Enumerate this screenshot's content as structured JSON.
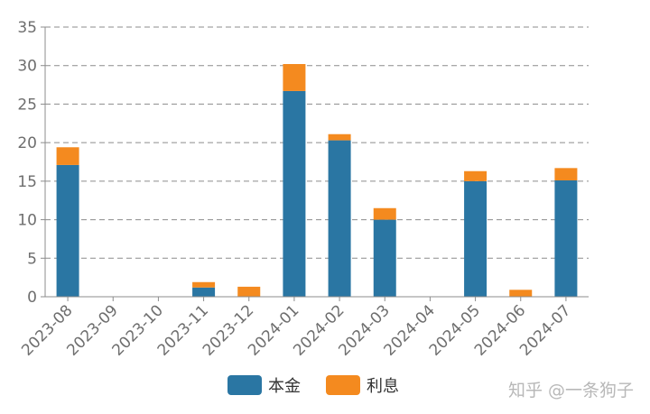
{
  "chart_data": {
    "type": "bar",
    "stacked": true,
    "categories": [
      "2023-08",
      "2023-09",
      "2023-10",
      "2023-11",
      "2023-12",
      "2024-01",
      "2024-02",
      "2024-03",
      "2024-04",
      "2024-05",
      "2024-06",
      "2024-07"
    ],
    "series": [
      {
        "name": "本金",
        "color": "#2a76a3",
        "values": [
          17.1,
          0,
          0,
          1.2,
          0,
          26.7,
          20.3,
          10.0,
          0,
          15.0,
          0,
          15.1
        ]
      },
      {
        "name": "利息",
        "color": "#f48a1f",
        "values": [
          2.3,
          0,
          0,
          0.7,
          1.3,
          3.5,
          0.8,
          1.5,
          0,
          1.3,
          0.9,
          1.6
        ]
      }
    ],
    "title": "",
    "xlabel": "",
    "ylabel": "",
    "ylim": [
      0,
      35
    ],
    "yticks": [
      0,
      5,
      10,
      15,
      20,
      25,
      30,
      35
    ],
    "grid": true,
    "legend": "bottom-center"
  },
  "watermark": "知乎 @一条狗子"
}
